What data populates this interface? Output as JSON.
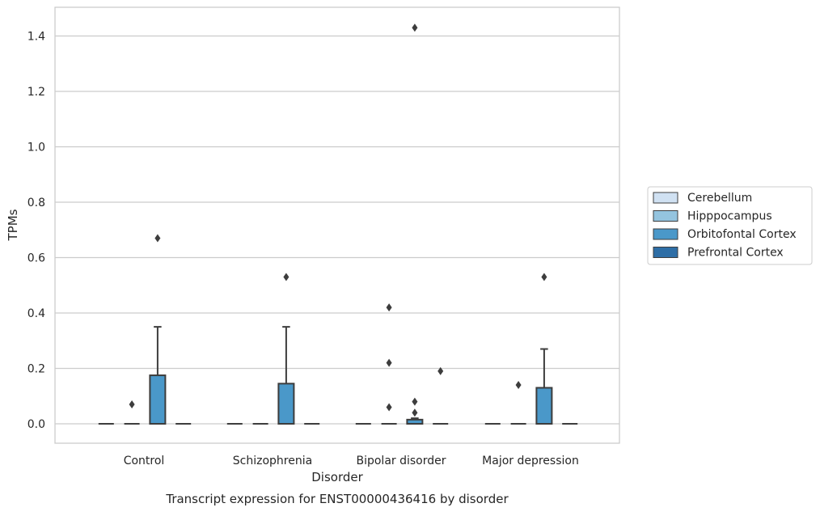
{
  "chart_data": {
    "type": "box",
    "xlabel": "Disorder",
    "ylabel": "TPMs",
    "caption": "Transcript expression for ENST00000436416 by disorder",
    "categories": [
      "Control",
      "Schizophrenia",
      "Bipolar disorder",
      "Major depression"
    ],
    "ylim": [
      -0.07,
      1.5
    ],
    "yticks": [
      0.0,
      0.2,
      0.4,
      0.6,
      0.8,
      1.0,
      1.2,
      1.4
    ],
    "ytick_labels": [
      "0.0",
      "0.2",
      "0.4",
      "0.6",
      "0.8",
      "1.0",
      "1.2",
      "1.4"
    ],
    "grid": "horizontal",
    "legend_position": "right, outside plot",
    "series": [
      {
        "name": "Cerebellum",
        "color": "#d0e1f2",
        "boxes": [
          {
            "q1": 0,
            "median": 0,
            "q3": 0,
            "whisker_low": 0,
            "whisker_high": 0,
            "outliers": []
          },
          {
            "q1": 0,
            "median": 0,
            "q3": 0,
            "whisker_low": 0,
            "whisker_high": 0,
            "outliers": []
          },
          {
            "q1": 0,
            "median": 0,
            "q3": 0,
            "whisker_low": 0,
            "whisker_high": 0,
            "outliers": []
          },
          {
            "q1": 0,
            "median": 0,
            "q3": 0,
            "whisker_low": 0,
            "whisker_high": 0,
            "outliers": []
          }
        ]
      },
      {
        "name": "Hipppocampus",
        "color": "#94c4df",
        "boxes": [
          {
            "q1": 0,
            "median": 0,
            "q3": 0,
            "whisker_low": 0,
            "whisker_high": 0,
            "outliers": [
              0.07
            ]
          },
          {
            "q1": 0,
            "median": 0,
            "q3": 0,
            "whisker_low": 0,
            "whisker_high": 0,
            "outliers": []
          },
          {
            "q1": 0,
            "median": 0,
            "q3": 0,
            "whisker_low": 0,
            "whisker_high": 0,
            "outliers": [
              0.06,
              0.22,
              0.42
            ]
          },
          {
            "q1": 0,
            "median": 0,
            "q3": 0,
            "whisker_low": 0,
            "whisker_high": 0,
            "outliers": [
              0.14
            ]
          }
        ]
      },
      {
        "name": "Orbitofontal Cortex",
        "color": "#4a98c9",
        "boxes": [
          {
            "q1": 0,
            "median": 0,
            "q3": 0.175,
            "whisker_low": 0,
            "whisker_high": 0.35,
            "outliers": [
              0.67
            ]
          },
          {
            "q1": 0,
            "median": 0,
            "q3": 0.145,
            "whisker_low": 0,
            "whisker_high": 0.35,
            "outliers": [
              0.53
            ]
          },
          {
            "q1": 0,
            "median": 0,
            "q3": 0.015,
            "whisker_low": 0,
            "whisker_high": 0.02,
            "outliers": [
              0.04,
              0.08,
              1.43
            ]
          },
          {
            "q1": 0,
            "median": 0,
            "q3": 0.13,
            "whisker_low": 0,
            "whisker_high": 0.27,
            "outliers": [
              0.53
            ]
          }
        ]
      },
      {
        "name": "Prefrontal Cortex",
        "color": "#2e6ea6",
        "boxes": [
          {
            "q1": 0,
            "median": 0,
            "q3": 0,
            "whisker_low": 0,
            "whisker_high": 0,
            "outliers": []
          },
          {
            "q1": 0,
            "median": 0,
            "q3": 0,
            "whisker_low": 0,
            "whisker_high": 0,
            "outliers": []
          },
          {
            "q1": 0,
            "median": 0,
            "q3": 0,
            "whisker_low": 0,
            "whisker_high": 0,
            "outliers": [
              0.19
            ]
          },
          {
            "q1": 0,
            "median": 0,
            "q3": 0,
            "whisker_low": 0,
            "whisker_high": 0,
            "outliers": []
          }
        ]
      }
    ],
    "style": {
      "grid_color": "#cccccc",
      "frame_color": "#cccccc",
      "line_color": "#3d3d3d",
      "outlier_color": "#3d3d3d",
      "legend_border_color": "#cccccc",
      "legend_patch_border": "#3d3d3d"
    }
  }
}
